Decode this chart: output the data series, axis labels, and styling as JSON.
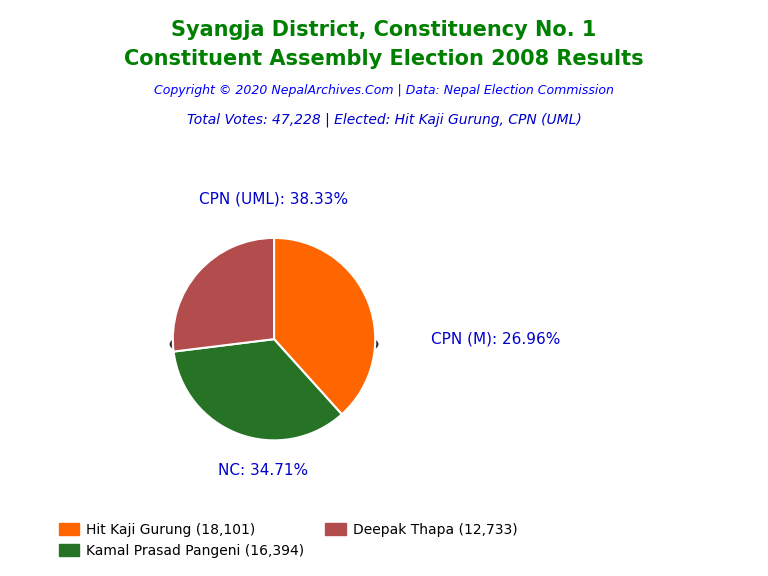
{
  "title_line1": "Syangja District, Constituency No. 1",
  "title_line2": "Constituent Assembly Election 2008 Results",
  "title_color": "#008000",
  "copyright_text": "Copyright © 2020 NepalArchives.Com | Data: Nepal Election Commission",
  "copyright_color": "#0000FF",
  "subtitle_text": "Total Votes: 47,228 | Elected: Hit Kaji Gurung, CPN (UML)",
  "subtitle_color": "#0000CD",
  "slices": [
    18101,
    16394,
    12733
  ],
  "slice_labels": [
    "CPN (UML): 38.33%",
    "NC: 34.71%",
    "CPN (M): 26.96%"
  ],
  "colors": [
    "#FF6600",
    "#267326",
    "#B34D4D"
  ],
  "legend_labels": [
    "Hit Kaji Gurung (18,101)",
    "Kamal Prasad Pangeni (16,394)",
    "Deepak Thapa (12,733)"
  ],
  "legend_colors": [
    "#FF6600",
    "#267326",
    "#B34D4D"
  ],
  "label_color": "#0000CD",
  "label_fontsize": 11,
  "title_fontsize": 15,
  "copyright_fontsize": 9,
  "subtitle_fontsize": 10,
  "legend_fontsize": 10,
  "startangle": 90
}
